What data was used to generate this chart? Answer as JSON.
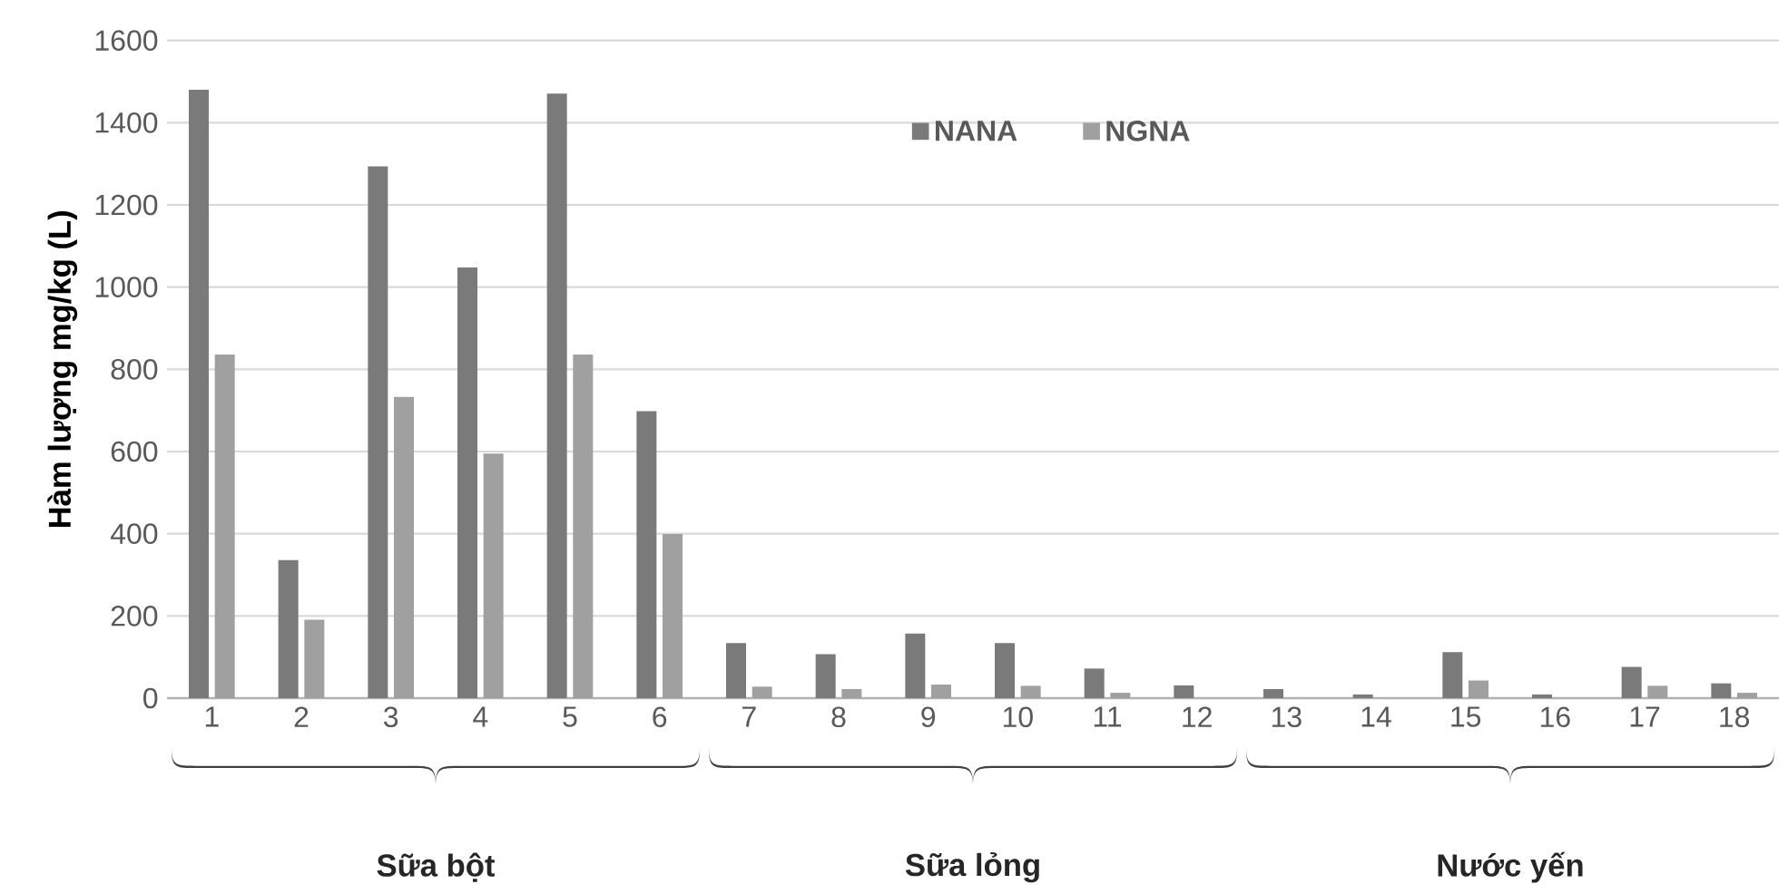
{
  "chart_data": {
    "type": "bar",
    "ylabel": "Hàm lượng mg/kg (L)",
    "categories": [
      "1",
      "2",
      "3",
      "4",
      "5",
      "6",
      "7",
      "8",
      "9",
      "10",
      "11",
      "12",
      "13",
      "14",
      "15",
      "16",
      "17",
      "18"
    ],
    "series": [
      {
        "name": "NANA",
        "color": "#7a7a7a",
        "values": [
          1480,
          336,
          1294,
          1048,
          1471,
          698,
          134,
          107,
          157,
          134,
          72,
          31,
          22,
          9,
          112,
          9,
          76,
          36
        ]
      },
      {
        "name": "NGNA",
        "color": "#a0a0a0",
        "values": [
          836,
          191,
          733,
          595,
          836,
          399,
          28,
          22,
          33,
          30,
          13,
          null,
          null,
          null,
          43,
          null,
          30,
          13
        ]
      }
    ],
    "ylim": [
      0,
      1600
    ],
    "yticks": [
      0,
      200,
      400,
      600,
      800,
      1000,
      1200,
      1400,
      1600
    ],
    "grid": "y",
    "legend": "top",
    "annotations": [
      "Sữa bột",
      "Sữa lỏng",
      "Nước yến"
    ]
  }
}
